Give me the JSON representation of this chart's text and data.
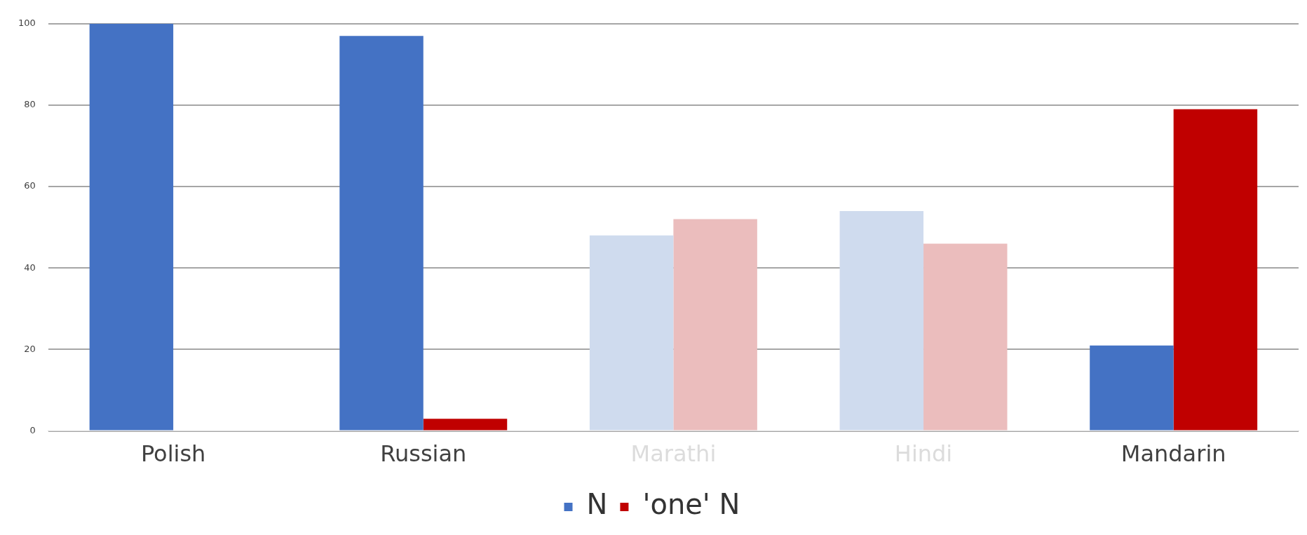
{
  "chart_data": {
    "type": "bar",
    "categories": [
      "Polish",
      "Russian",
      "Marathi",
      "Hindi",
      "Mandarin"
    ],
    "series": [
      {
        "name": "N",
        "color": "#4472c4",
        "colors": [
          "#4472c4",
          "#4472c4",
          "#cfdbee",
          "#cfdbee",
          "#4472c4"
        ],
        "values": [
          100,
          97,
          48,
          54,
          21
        ]
      },
      {
        "name": "'one' N",
        "color": "#c00000",
        "colors": [
          "#c00000",
          "#c00000",
          "#ebbdbd",
          "#ebbdbd",
          "#c00000"
        ],
        "values": [
          0,
          3,
          52,
          46,
          79
        ]
      }
    ],
    "ylim": [
      0,
      100
    ],
    "yticks": [
      0,
      20,
      40,
      60,
      80,
      100
    ],
    "grid": "y",
    "legend": "bottom"
  }
}
